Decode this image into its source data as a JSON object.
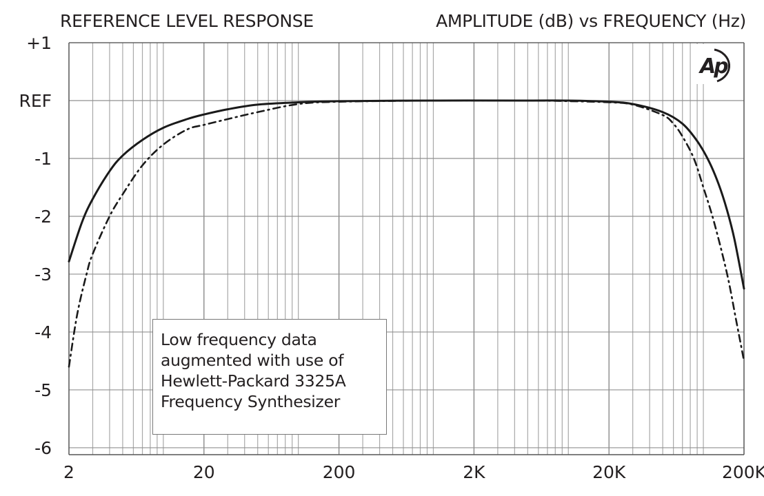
{
  "chart_data": {
    "type": "line",
    "title_left": "REFERENCE LEVEL RESPONSE",
    "title_right": "AMPLITUDE (dB) vs FREQUENCY (Hz)",
    "xlabel": "Frequency (Hz)",
    "ylabel": "Amplitude (dB)",
    "xscale": "log",
    "xlim": [
      2,
      200000
    ],
    "ylim": [
      -6.12,
      1
    ],
    "grid": true,
    "x_ticks": [
      {
        "value": 2,
        "label": "2"
      },
      {
        "value": 20,
        "label": "20"
      },
      {
        "value": 200,
        "label": "200"
      },
      {
        "value": 2000,
        "label": "2K"
      },
      {
        "value": 20000,
        "label": "20K"
      },
      {
        "value": 200000,
        "label": "200K"
      }
    ],
    "y_ticks": [
      {
        "value": 1,
        "label": "+1"
      },
      {
        "value": 0,
        "label": "REF"
      },
      {
        "value": -1,
        "label": "-1"
      },
      {
        "value": -2,
        "label": "-2"
      },
      {
        "value": -3,
        "label": "-3"
      },
      {
        "value": -4,
        "label": "-4"
      },
      {
        "value": -5,
        "label": "-5"
      },
      {
        "value": -6,
        "label": "-6"
      }
    ],
    "series": [
      {
        "name": "solid",
        "style": "solid",
        "x": [
          2,
          2.5,
          3,
          4,
          5,
          7,
          10,
          15,
          20,
          30,
          50,
          100,
          200,
          1000,
          5000,
          10000,
          20000,
          30000,
          50000,
          70000,
          90000,
          110000,
          130000,
          150000,
          170000,
          200000
        ],
        "y": [
          -2.78,
          -2.1,
          -1.7,
          -1.22,
          -0.95,
          -0.68,
          -0.47,
          -0.32,
          -0.24,
          -0.15,
          -0.07,
          -0.03,
          -0.01,
          0,
          0,
          0,
          -0.02,
          -0.06,
          -0.2,
          -0.4,
          -0.7,
          -1.05,
          -1.45,
          -1.9,
          -2.4,
          -3.25
        ]
      },
      {
        "name": "dash-dot",
        "style": "dashdot",
        "x": [
          2,
          2.3,
          2.7,
          3,
          4,
          5,
          7,
          10,
          15,
          20,
          30,
          50,
          100,
          200,
          1000,
          5000,
          10000,
          20000,
          30000,
          50000,
          60000,
          70000,
          85000,
          100000,
          120000,
          150000,
          175000,
          200000
        ],
        "y": [
          -4.6,
          -3.7,
          -3.0,
          -2.65,
          -2.0,
          -1.62,
          -1.12,
          -0.76,
          -0.5,
          -0.42,
          -0.32,
          -0.2,
          -0.06,
          -0.02,
          0,
          0,
          -0.01,
          -0.03,
          -0.07,
          -0.25,
          -0.4,
          -0.62,
          -1.0,
          -1.5,
          -2.1,
          -3.0,
          -3.8,
          -4.5
        ]
      }
    ],
    "annotation": {
      "lines": [
        "Low frequency data",
        "augmented with use of",
        "Hewlett-Packard 3325A",
        "Frequency Synthesizer"
      ],
      "placement": "bottom-left"
    },
    "logo": "Ap"
  }
}
